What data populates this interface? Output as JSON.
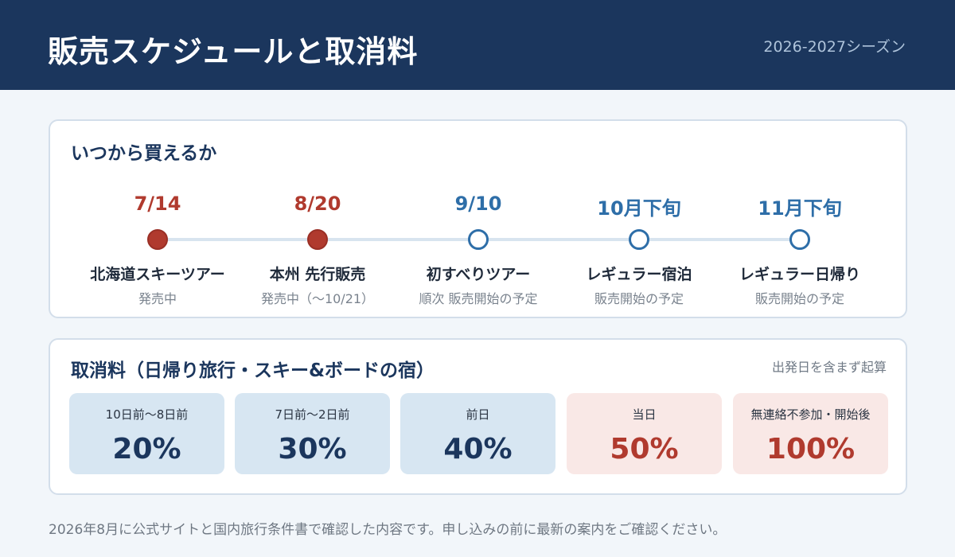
{
  "header": {
    "title": "販売スケジュールと取消料",
    "season": "2026-2027シーズン"
  },
  "timeline": {
    "title": "いつから買えるか",
    "items": [
      {
        "date": "7/14",
        "name": "北海道スキーツアー",
        "status": "発売中",
        "state": "sold"
      },
      {
        "date": "8/20",
        "name": "本州 先行販売",
        "status": "発売中（〜10/21）",
        "state": "sold"
      },
      {
        "date": "9/10",
        "name": "初すべりツアー",
        "status": "順次 販売開始の予定",
        "state": "upcoming"
      },
      {
        "date": "10月下旬",
        "name": "レギュラー宿泊",
        "status": "販売開始の予定",
        "state": "upcoming"
      },
      {
        "date": "11月下旬",
        "name": "レギュラー日帰り",
        "status": "販売開始の予定",
        "state": "upcoming"
      }
    ]
  },
  "fees": {
    "title": "取消料（日帰り旅行・スキー&ボードの宿）",
    "note": "出発日を含まず起算",
    "items": [
      {
        "period": "10日前〜8日前",
        "percent": "20%",
        "tone": "blue"
      },
      {
        "period": "7日前〜2日前",
        "percent": "30%",
        "tone": "blue"
      },
      {
        "period": "前日",
        "percent": "40%",
        "tone": "blue"
      },
      {
        "period": "当日",
        "percent": "50%",
        "tone": "red"
      },
      {
        "period": "無連絡不参加・開始後",
        "percent": "100%",
        "tone": "red"
      }
    ]
  },
  "footer": {
    "text": "2026年8月に公式サイトと国内旅行条件書で確認した内容です。申し込みの前に最新の案内をご確認ください。"
  },
  "colors": {
    "header_bg": "#1b365d",
    "sold_red": "#b03a2e",
    "upcoming_blue": "#2e6ea8",
    "fee_blue_bg": "#d7e6f2",
    "fee_red_bg": "#f9e8e6"
  }
}
